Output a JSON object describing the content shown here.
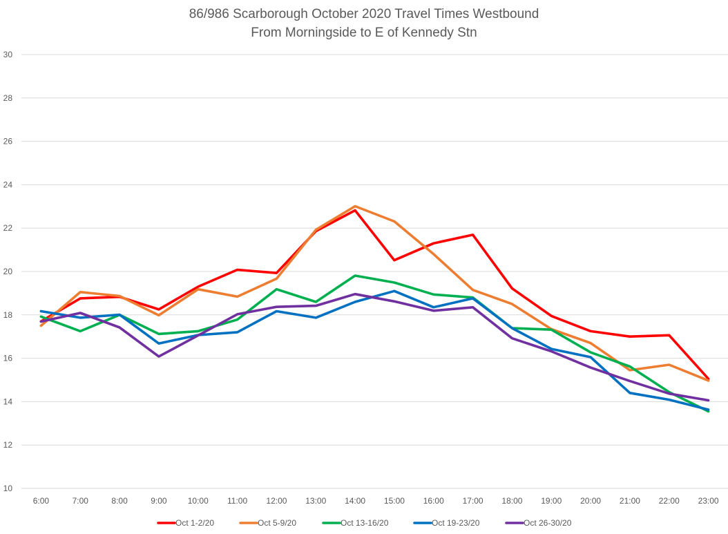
{
  "chart_data": {
    "type": "line",
    "title": "86/986 Scarborough October 2020 Travel Times Westbound",
    "subtitle": "From Morningside to E of Kennedy Stn",
    "xlabel": "",
    "ylabel": "",
    "ylim": [
      10,
      30
    ],
    "yticks": [
      10,
      12,
      14,
      16,
      18,
      20,
      22,
      24,
      26,
      28,
      30
    ],
    "grid": true,
    "legend_position": "bottom",
    "categories": [
      "6:00",
      "7:00",
      "8:00",
      "9:00",
      "10:00",
      "11:00",
      "12:00",
      "13:00",
      "14:00",
      "15:00",
      "16:00",
      "17:00",
      "18:00",
      "19:00",
      "20:00",
      "21:00",
      "22:00",
      "23:00"
    ],
    "series": [
      {
        "name": "Oct 1-2/20",
        "color": "#FF0000",
        "values": [
          17.7,
          18.76,
          18.83,
          18.25,
          19.3,
          20.08,
          19.93,
          21.86,
          22.82,
          20.52,
          21.3,
          21.69,
          19.22,
          17.95,
          17.25,
          17.0,
          17.06,
          15.05
        ]
      },
      {
        "name": "Oct 5-9/20",
        "color": "#ED7D31",
        "values": [
          17.5,
          19.05,
          18.87,
          17.98,
          19.18,
          18.84,
          19.67,
          21.92,
          23.01,
          22.31,
          20.8,
          19.15,
          18.5,
          17.34,
          16.7,
          15.45,
          15.7,
          14.97
        ]
      },
      {
        "name": "Oct 13-16/20",
        "color": "#00B050",
        "values": [
          17.92,
          17.25,
          18.0,
          17.12,
          17.25,
          17.78,
          19.18,
          18.6,
          19.81,
          19.49,
          18.94,
          18.8,
          17.39,
          17.32,
          16.27,
          15.62,
          14.44,
          13.55
        ]
      },
      {
        "name": "Oct 19-23/20",
        "color": "#0070C0",
        "values": [
          18.17,
          17.87,
          18.01,
          16.68,
          17.07,
          17.2,
          18.17,
          17.87,
          18.6,
          19.1,
          18.35,
          18.76,
          17.39,
          16.43,
          16.05,
          14.4,
          14.09,
          13.63
        ]
      },
      {
        "name": "Oct 26-30/20",
        "color": "#7030A0",
        "values": [
          17.69,
          18.09,
          17.42,
          16.08,
          17.05,
          18.03,
          18.37,
          18.42,
          18.96,
          18.62,
          18.19,
          18.35,
          16.92,
          16.32,
          15.57,
          14.95,
          14.37,
          14.06
        ]
      }
    ]
  }
}
